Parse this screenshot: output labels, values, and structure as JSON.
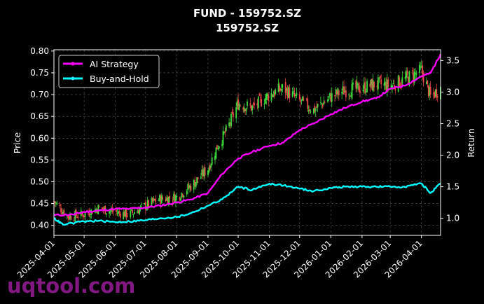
{
  "chart_data": {
    "type": "line",
    "title": "FUND - 159752.SZ",
    "subtitle": "159752.SZ",
    "ylabel": "Price",
    "y2label": "Return",
    "xlim": [
      "2025-04-01",
      "2026-04-20"
    ],
    "ylim": [
      0.377,
      0.803
    ],
    "y2lim": [
      0.73,
      3.67
    ],
    "x_ticks": [
      "2025-04-01",
      "2025-05-01",
      "2025-06-01",
      "2025-07-01",
      "2025-08-01",
      "2025-09-01",
      "2025-10-01",
      "2025-11-01",
      "2025-12-01",
      "2026-01-01",
      "2026-02-01",
      "2026-03-01",
      "2026-04-01"
    ],
    "y_ticks": [
      "0.40",
      "0.45",
      "0.50",
      "0.55",
      "0.60",
      "0.65",
      "0.70",
      "0.75",
      "0.80"
    ],
    "y2_ticks": [
      "1.0",
      "1.5",
      "2.0",
      "2.5",
      "3.0",
      "3.5"
    ],
    "grid": true,
    "legend_position": "top-left",
    "colors": {
      "background": "#000000",
      "ai_strategy": "#ff00ff",
      "buy_and_hold": "#00ffff",
      "candle_up": "#3ddc3d",
      "candle_down": "#e84848",
      "grid": "#555555"
    },
    "price_series": {
      "name": "",
      "dates": [
        "2025-04-01",
        "2025-04-15",
        "2025-05-01",
        "2025-05-15",
        "2025-06-01",
        "2025-06-15",
        "2025-07-01",
        "2025-07-15",
        "2025-08-01",
        "2025-08-15",
        "2025-09-01",
        "2025-09-10",
        "2025-09-20",
        "2025-10-01",
        "2025-10-15",
        "2025-11-01",
        "2025-11-15",
        "2025-12-01",
        "2025-12-15",
        "2026-01-01",
        "2026-01-15",
        "2026-02-01",
        "2026-02-15",
        "2026-03-01",
        "2026-03-15",
        "2026-04-01",
        "2026-04-10",
        "2026-04-20"
      ],
      "values": [
        0.455,
        0.42,
        0.425,
        0.44,
        0.43,
        0.425,
        0.445,
        0.46,
        0.465,
        0.49,
        0.53,
        0.58,
        0.62,
        0.68,
        0.67,
        0.7,
        0.715,
        0.685,
        0.665,
        0.695,
        0.71,
        0.715,
        0.725,
        0.72,
        0.735,
        0.755,
        0.695,
        0.715
      ]
    },
    "series": [
      {
        "name": "AI Strategy",
        "dates": [
          "2025-04-01",
          "2025-04-20",
          "2025-05-01",
          "2025-05-15",
          "2025-06-01",
          "2025-06-15",
          "2025-07-01",
          "2025-07-15",
          "2025-08-01",
          "2025-08-15",
          "2025-09-01",
          "2025-09-15",
          "2025-10-01",
          "2025-10-15",
          "2025-11-01",
          "2025-11-15",
          "2025-12-01",
          "2025-12-15",
          "2026-01-01",
          "2026-01-15",
          "2026-02-01",
          "2026-02-15",
          "2026-03-01",
          "2026-03-15",
          "2026-04-01",
          "2026-04-10",
          "2026-04-20"
        ],
        "values": [
          1.05,
          1.06,
          1.1,
          1.12,
          1.15,
          1.15,
          1.17,
          1.2,
          1.25,
          1.3,
          1.4,
          1.7,
          1.95,
          2.05,
          2.15,
          2.2,
          2.4,
          2.5,
          2.65,
          2.75,
          2.85,
          2.9,
          3.05,
          3.1,
          3.25,
          3.3,
          3.6
        ]
      },
      {
        "name": "Buy-and-Hold",
        "dates": [
          "2025-04-01",
          "2025-04-10",
          "2025-05-01",
          "2025-05-15",
          "2025-06-01",
          "2025-06-15",
          "2025-07-01",
          "2025-07-15",
          "2025-08-01",
          "2025-08-15",
          "2025-09-01",
          "2025-09-15",
          "2025-10-01",
          "2025-10-15",
          "2025-11-01",
          "2025-11-15",
          "2025-12-01",
          "2025-12-15",
          "2026-01-01",
          "2026-01-15",
          "2026-02-01",
          "2026-02-15",
          "2026-03-01",
          "2026-03-15",
          "2026-04-01",
          "2026-04-10",
          "2026-04-20"
        ],
        "values": [
          1.0,
          0.9,
          0.95,
          0.96,
          0.94,
          0.95,
          0.97,
          1.0,
          1.02,
          1.08,
          1.2,
          1.3,
          1.5,
          1.45,
          1.55,
          1.52,
          1.47,
          1.43,
          1.48,
          1.5,
          1.5,
          1.5,
          1.5,
          1.5,
          1.55,
          1.4,
          1.55
        ]
      }
    ]
  },
  "watermark": "uqtool.com"
}
